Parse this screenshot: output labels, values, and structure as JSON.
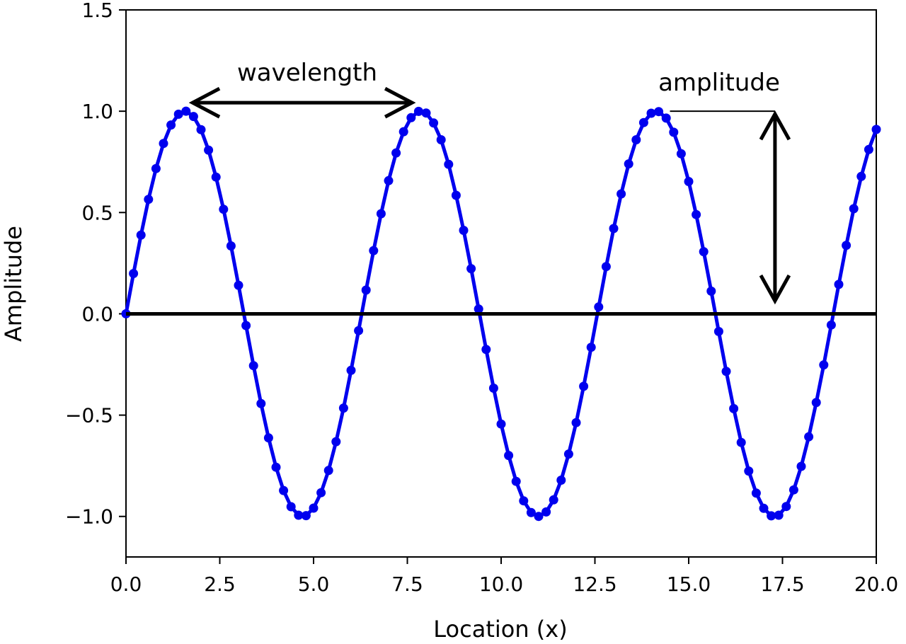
{
  "chart_data": {
    "type": "line",
    "title": "",
    "xlabel": "Location (x)",
    "ylabel": "Amplitude",
    "xlim": [
      0,
      20
    ],
    "ylim": [
      -1.2,
      1.5
    ],
    "xticks": [
      "0.0",
      "2.5",
      "5.0",
      "7.5",
      "10.0",
      "12.5",
      "15.0",
      "17.5",
      "20.0"
    ],
    "yticks": [
      "−1.0",
      "−0.5",
      "0.0",
      "0.5",
      "1.0",
      "1.5"
    ],
    "grid": false,
    "series": [
      {
        "color": "#0000ee",
        "marker": "circle",
        "x_start": 0,
        "x_step": 0.2,
        "y": [
          0.0,
          0.199,
          0.389,
          0.565,
          0.717,
          0.841,
          0.932,
          0.985,
          1.0,
          0.974,
          0.909,
          0.808,
          0.675,
          0.516,
          0.335,
          0.141,
          -0.058,
          -0.256,
          -0.443,
          -0.612,
          -0.757,
          -0.872,
          -0.952,
          -0.994,
          -0.996,
          -0.959,
          -0.883,
          -0.773,
          -0.631,
          -0.465,
          -0.279,
          -0.083,
          0.117,
          0.312,
          0.494,
          0.657,
          0.794,
          0.899,
          0.968,
          0.999,
          0.991,
          0.942,
          0.859,
          0.738,
          0.585,
          0.412,
          0.223,
          0.024,
          -0.176,
          -0.367,
          -0.544,
          -0.699,
          -0.827,
          -0.923,
          -0.981,
          -1.0,
          -0.978,
          -0.918,
          -0.821,
          -0.692,
          -0.537,
          -0.358,
          -0.165,
          0.034,
          0.233,
          0.421,
          0.592,
          0.74,
          0.859,
          0.944,
          0.99,
          0.998,
          0.966,
          0.896,
          0.79,
          0.653,
          0.49,
          0.307,
          0.112,
          -0.087,
          -0.284,
          -0.468,
          -0.635,
          -0.776,
          -0.885,
          -0.96,
          -0.997,
          -0.994,
          -0.951,
          -0.869,
          -0.753,
          -0.607,
          -0.438,
          -0.252,
          -0.055,
          0.145,
          0.338,
          0.519,
          0.678,
          0.811,
          0.91
        ]
      }
    ],
    "baseline": {
      "y": 0,
      "color": "#000000"
    },
    "annotations": {
      "wavelength": {
        "label": "wavelength",
        "from_x": 1.7,
        "to_x": 7.7,
        "y": 1.0
      },
      "amplitude": {
        "label": "amplitude",
        "x": 17.3,
        "from_y": 0.05,
        "to_y": 1.0,
        "guide_from_x": 14.5
      }
    }
  }
}
